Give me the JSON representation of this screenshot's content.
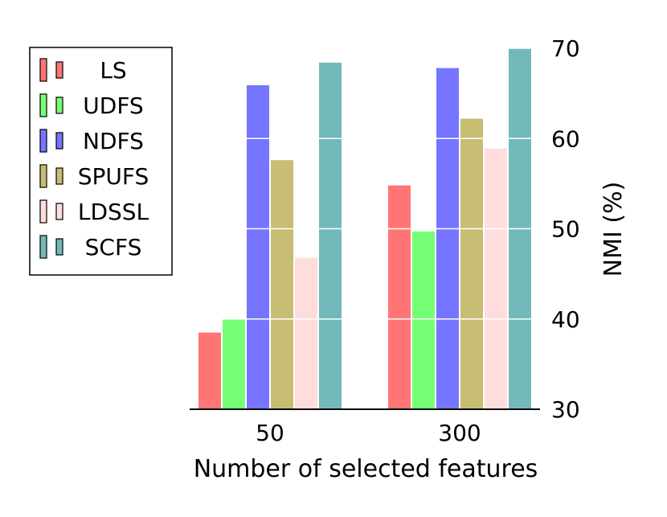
{
  "chart_data": {
    "type": "bar",
    "categories": [
      "50",
      "300"
    ],
    "series": [
      {
        "name": "LS",
        "color": "#ff7575",
        "values": [
          38.5,
          54.8
        ]
      },
      {
        "name": "UDFS",
        "color": "#75ff75",
        "values": [
          40.0,
          49.7
        ]
      },
      {
        "name": "NDFS",
        "color": "#7575ff",
        "values": [
          65.9,
          67.8
        ]
      },
      {
        "name": "SPUFS",
        "color": "#c7bd73",
        "values": [
          57.6,
          62.2
        ]
      },
      {
        "name": "LDSSL",
        "color": "#ffdddd",
        "values": [
          46.8,
          58.9
        ]
      },
      {
        "name": "SCFS",
        "color": "#73b9b9",
        "values": [
          68.4,
          70.0
        ]
      }
    ],
    "xlabel": "Number of selected features",
    "ylabel": "NMI (%)",
    "ylim": [
      30,
      70
    ],
    "yticks": [
      30,
      40,
      50,
      60,
      70
    ],
    "yaxis_side": "right",
    "grid": true,
    "grid_color": "#ffffff",
    "legend_position": "left"
  }
}
